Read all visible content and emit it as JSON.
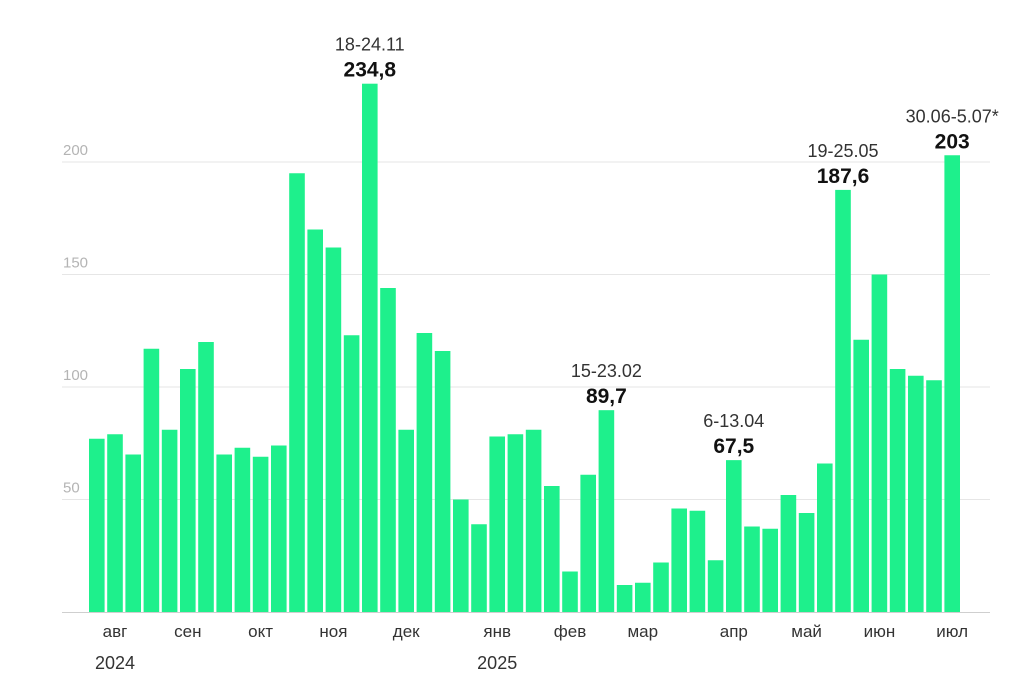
{
  "chart_data": {
    "type": "bar",
    "bar_color": "#1ef08c",
    "ylim": [
      0,
      240
    ],
    "yticks": [
      "50",
      "100",
      "150",
      "200"
    ],
    "ytick_values": [
      50,
      100,
      150,
      200
    ],
    "month_labels": [
      "авг",
      "сен",
      "окт",
      "ноя",
      "дек",
      "янв",
      "фев",
      "мар",
      "апр",
      "май",
      "июн",
      "июл"
    ],
    "month_label_bar_index": [
      1,
      5,
      9,
      13,
      17,
      22,
      26,
      30,
      35,
      39,
      43,
      47
    ],
    "years": [
      "2024",
      "2025"
    ],
    "year_bar_index": [
      1,
      22
    ],
    "values": [
      77,
      79,
      70,
      117,
      81,
      108,
      120,
      70,
      73,
      69,
      74,
      195,
      170,
      162,
      123,
      234.8,
      144,
      81,
      124,
      116,
      50,
      39,
      78,
      79,
      81,
      56,
      18,
      61,
      89.7,
      12,
      13,
      22,
      46,
      45,
      23,
      67.5,
      38,
      37,
      52,
      44,
      66,
      187.6,
      121,
      150,
      108,
      105,
      103,
      203
    ],
    "annotations": [
      {
        "bar_index": 15,
        "date": "18-24.11",
        "value": "234,8"
      },
      {
        "bar_index": 28,
        "date": "15-23.02",
        "value": "89,7"
      },
      {
        "bar_index": 35,
        "date": "6-13.04",
        "value": "67,5"
      },
      {
        "bar_index": 41,
        "date": "19-25.05",
        "value": "187,6"
      },
      {
        "bar_index": 47,
        "date": "30.06-5.07*",
        "value": "203"
      }
    ]
  }
}
